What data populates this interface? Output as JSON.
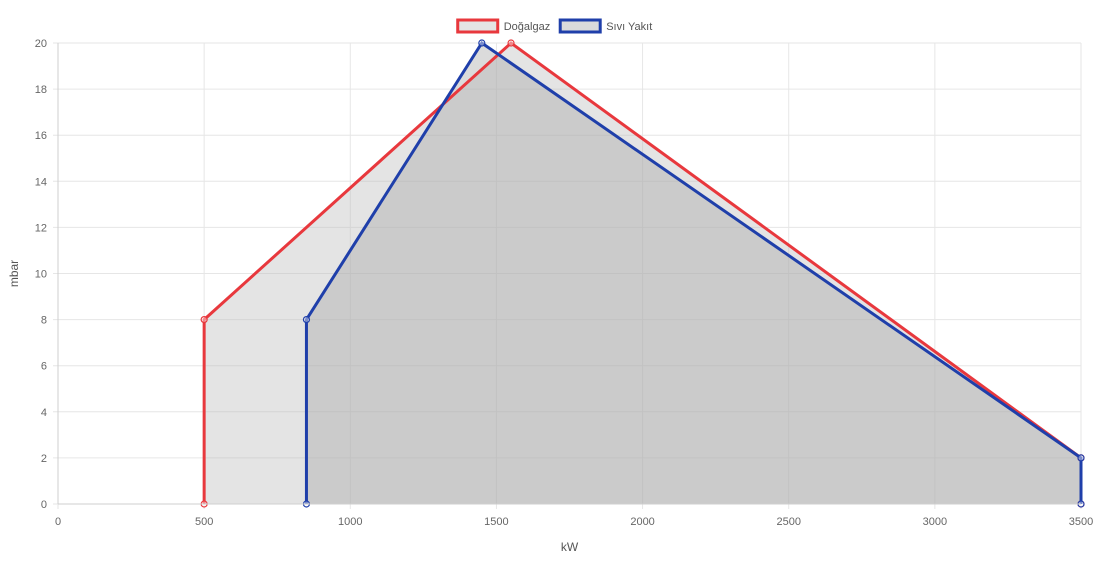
{
  "chart_data": {
    "type": "area",
    "xlabel": "kW",
    "ylabel": "mbar",
    "xlim": [
      0,
      3500
    ],
    "ylim": [
      0,
      20
    ],
    "x_ticks": [
      0,
      500,
      1000,
      1500,
      2000,
      2500,
      3000,
      3500
    ],
    "y_ticks": [
      0,
      2,
      4,
      6,
      8,
      10,
      12,
      14,
      16,
      18,
      20
    ],
    "grid": true,
    "legend": "top-center",
    "series": [
      {
        "name": "Doğalgaz",
        "color": "#e8383d",
        "fill": "rgba(190,190,190,0.42)",
        "points": [
          [
            500,
            0
          ],
          [
            500,
            8
          ],
          [
            1550,
            20
          ],
          [
            3500,
            2
          ],
          [
            3500,
            0
          ]
        ]
      },
      {
        "name": "Sıvı Yakıt",
        "color": "#1f3faa",
        "fill": "rgba(170,170,170,0.42)",
        "points": [
          [
            850,
            0
          ],
          [
            850,
            8
          ],
          [
            1450,
            20
          ],
          [
            3500,
            2
          ],
          [
            3500,
            0
          ]
        ]
      }
    ]
  }
}
